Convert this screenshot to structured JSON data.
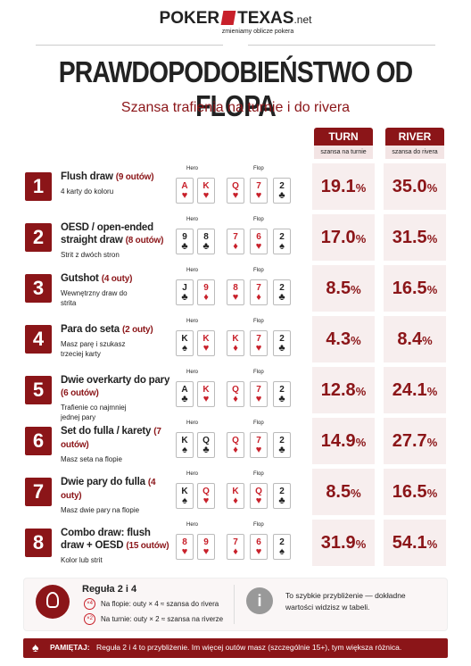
{
  "header": {
    "logo_left": "POKER",
    "logo_right": "TEXAS",
    "logo_suffix": ".net",
    "tagline": "zmieniamy oblicze pokera"
  },
  "title": "PRAWDOPODOBIEŃSTWO OD FLOPA",
  "subtitle": "Szansa trafienia na turnie i do rivera",
  "columns": {
    "turn": "TURN",
    "turn_sub": "szansa na turnie",
    "river": "RIVER",
    "river_sub": "szansa do rivera"
  },
  "hero_label": "Hero",
  "flop_label": "Flop",
  "unit": "%",
  "rows": [
    {
      "number": "1",
      "title": "Flush draw",
      "outs": "(9 outów)",
      "desc": "4 karty do koloru",
      "hero": [
        {
          "rank": "A",
          "suit": "♥",
          "red": true
        },
        {
          "rank": "K",
          "suit": "♥",
          "red": true
        }
      ],
      "flop": [
        {
          "rank": "Q",
          "suit": "♥",
          "red": true
        },
        {
          "rank": "7",
          "suit": "♥",
          "red": true
        },
        {
          "rank": "2",
          "suit": "♣",
          "red": false
        }
      ],
      "turn": "19.1",
      "river": "35.0"
    },
    {
      "number": "2",
      "title": "OESD / open-ended straight draw",
      "outs": "(8 outów)",
      "desc": "Strit z dwóch stron",
      "hero": [
        {
          "rank": "9",
          "suit": "♣",
          "red": false
        },
        {
          "rank": "8",
          "suit": "♣",
          "red": false
        }
      ],
      "flop": [
        {
          "rank": "7",
          "suit": "♦",
          "red": true
        },
        {
          "rank": "6",
          "suit": "♥",
          "red": true
        },
        {
          "rank": "2",
          "suit": "♠",
          "red": false
        }
      ],
      "turn": "17.0",
      "river": "31.5"
    },
    {
      "number": "3",
      "title": "Gutshot",
      "outs": "(4 outy)",
      "desc": "Wewnętrzny draw do strita",
      "hero": [
        {
          "rank": "J",
          "suit": "♣",
          "red": false
        },
        {
          "rank": "9",
          "suit": "♦",
          "red": true
        }
      ],
      "flop": [
        {
          "rank": "8",
          "suit": "♥",
          "red": true
        },
        {
          "rank": "7",
          "suit": "♦",
          "red": true
        },
        {
          "rank": "2",
          "suit": "♣",
          "red": false
        }
      ],
      "turn": "8.5",
      "river": "16.5"
    },
    {
      "number": "4",
      "title": "Para do seta",
      "outs": "(2 outy)",
      "desc": "Masz parę i szukasz trzeciej karty",
      "hero": [
        {
          "rank": "K",
          "suit": "♠",
          "red": false
        },
        {
          "rank": "K",
          "suit": "♥",
          "red": true
        }
      ],
      "flop": [
        {
          "rank": "K",
          "suit": "♦",
          "red": true
        },
        {
          "rank": "7",
          "suit": "♥",
          "red": true
        },
        {
          "rank": "2",
          "suit": "♣",
          "red": false
        }
      ],
      "turn": "4.3",
      "river": "8.4"
    },
    {
      "number": "5",
      "title": "Dwie overkarty do pary",
      "outs": "(6 outów)",
      "desc": "Trafienie co najmniej jednej pary",
      "hero": [
        {
          "rank": "A",
          "suit": "♣",
          "red": false
        },
        {
          "rank": "K",
          "suit": "♥",
          "red": true
        }
      ],
      "flop": [
        {
          "rank": "Q",
          "suit": "♦",
          "red": true
        },
        {
          "rank": "7",
          "suit": "♥",
          "red": true
        },
        {
          "rank": "2",
          "suit": "♣",
          "red": false
        }
      ],
      "turn": "12.8",
      "river": "24.1"
    },
    {
      "number": "6",
      "title": "Set do fulla / karety",
      "outs": "(7 outów)",
      "desc": "Masz seta na flopie",
      "hero": [
        {
          "rank": "K",
          "suit": "♠",
          "red": false
        },
        {
          "rank": "Q",
          "suit": "♣",
          "red": false
        }
      ],
      "flop": [
        {
          "rank": "Q",
          "suit": "♦",
          "red": true
        },
        {
          "rank": "7",
          "suit": "♥",
          "red": true
        },
        {
          "rank": "2",
          "suit": "♣",
          "red": false
        }
      ],
      "turn": "14.9",
      "river": "27.7"
    },
    {
      "number": "7",
      "title": "Dwie pary do fulla",
      "outs": "(4 outy)",
      "desc": "Masz dwie pary na flopie",
      "hero": [
        {
          "rank": "K",
          "suit": "♠",
          "red": false
        },
        {
          "rank": "Q",
          "suit": "♥",
          "red": true
        }
      ],
      "flop": [
        {
          "rank": "K",
          "suit": "♦",
          "red": true
        },
        {
          "rank": "Q",
          "suit": "♥",
          "red": true
        },
        {
          "rank": "2",
          "suit": "♣",
          "red": false
        }
      ],
      "turn": "8.5",
      "river": "16.5"
    },
    {
      "number": "8",
      "title": "Combo draw: flush draw + OESD",
      "outs": "(15 outów)",
      "desc": "Kolor lub strit",
      "hero": [
        {
          "rank": "8",
          "suit": "♥",
          "red": true
        },
        {
          "rank": "9",
          "suit": "♥",
          "red": true
        }
      ],
      "flop": [
        {
          "rank": "7",
          "suit": "♦",
          "red": true
        },
        {
          "rank": "6",
          "suit": "♥",
          "red": true
        },
        {
          "rank": "2",
          "suit": "♠",
          "red": false
        }
      ],
      "turn": "31.9",
      "river": "54.1"
    }
  ],
  "rule": {
    "title": "Reguła 2 i 4",
    "items": [
      {
        "badge": "×4",
        "text": "Na flopie: outy × 4 ≈ szansa do rivera"
      },
      {
        "badge": "×2",
        "text": "Na turnie: outy × 2 ≈ szansa na riverze"
      }
    ]
  },
  "info": {
    "icon": "i",
    "text": "To szybkie przybliżenie — dokładne wartości widzisz w tabeli."
  },
  "footer": {
    "icon": "♠",
    "label": "PAMIĘTAJ:",
    "text": "Reguła 2 i 4 to przybliżenie. Im więcej outów masz (szczególnie 15+), tym większa różnica."
  }
}
